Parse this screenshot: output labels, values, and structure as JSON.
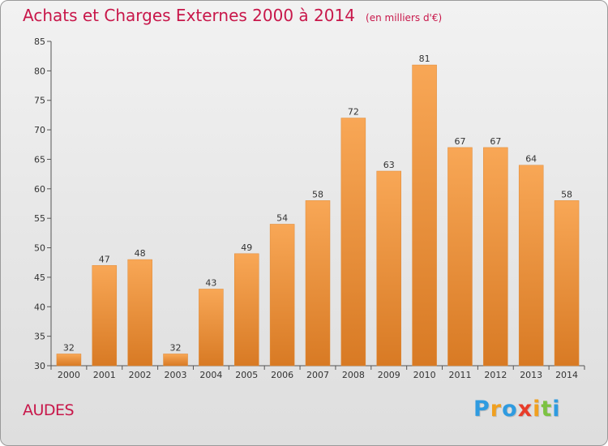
{
  "title": "Achats et Charges Externes 2000 à 2014",
  "subtitle": "(en milliers d'€)",
  "commune": "AUDES",
  "logo": {
    "letters": [
      "P",
      "r",
      "o",
      "x",
      "i",
      "t",
      "i"
    ],
    "colors": [
      "#2f9be0",
      "#f0a020",
      "#2f9be0",
      "#e83c2a",
      "#f0a020",
      "#7cc242",
      "#2f9be0"
    ]
  },
  "colors": {
    "accent": "#c8174a",
    "bar_top": "#f8a756",
    "bar_bottom": "#d87a24",
    "bar_outline": "#e08a36"
  },
  "chart_data": {
    "type": "bar",
    "title": "Achats et Charges Externes 2000 à 2014",
    "subtitle": "(en milliers d'€)",
    "categories": [
      "2000",
      "2001",
      "2002",
      "2003",
      "2004",
      "2005",
      "2006",
      "2007",
      "2008",
      "2009",
      "2010",
      "2011",
      "2012",
      "2013",
      "2014"
    ],
    "values": [
      32,
      47,
      48,
      32,
      43,
      49,
      54,
      58,
      72,
      63,
      81,
      67,
      67,
      64,
      58
    ],
    "ylim": [
      30,
      85
    ],
    "yticks": [
      30,
      35,
      40,
      45,
      50,
      55,
      60,
      65,
      70,
      75,
      80,
      85
    ],
    "xlabel": "",
    "ylabel": "",
    "grid": false,
    "data_labels": true
  }
}
